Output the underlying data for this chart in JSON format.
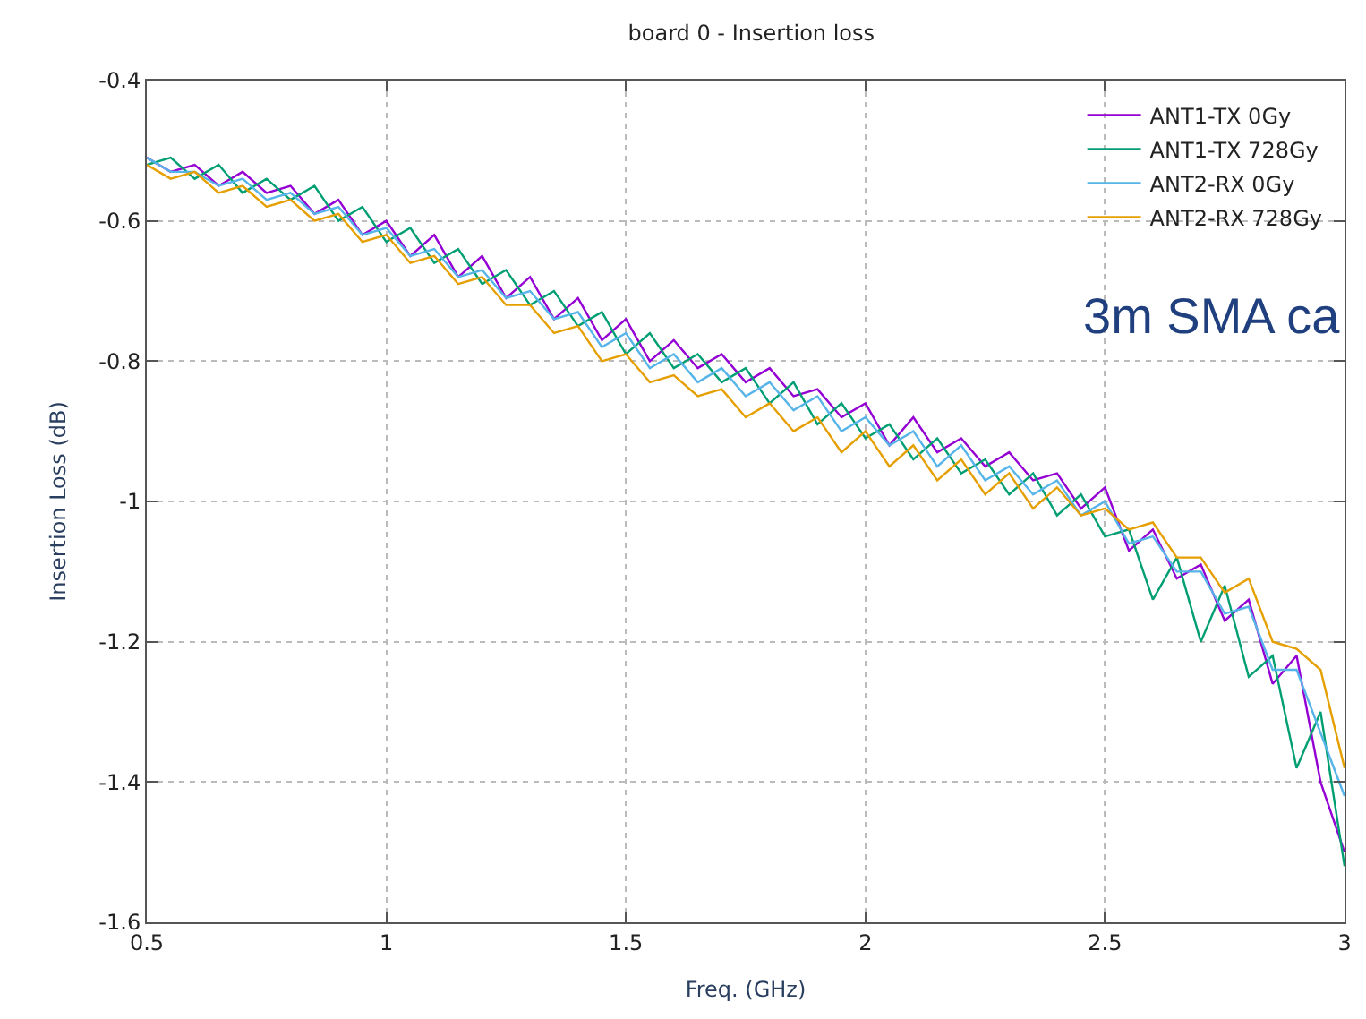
{
  "chart_data": {
    "type": "line",
    "title": "board 0 - Insertion loss",
    "xlabel": "Freq. (GHz)",
    "ylabel": "Insertion Loss (dB)",
    "x": [
      0.5,
      0.55,
      0.6,
      0.65,
      0.7,
      0.75,
      0.8,
      0.85,
      0.9,
      0.95,
      1.0,
      1.05,
      1.1,
      1.15,
      1.2,
      1.25,
      1.3,
      1.35,
      1.4,
      1.45,
      1.5,
      1.55,
      1.6,
      1.65,
      1.7,
      1.75,
      1.8,
      1.85,
      1.9,
      1.95,
      2.0,
      2.05,
      2.1,
      2.15,
      2.2,
      2.25,
      2.3,
      2.35,
      2.4,
      2.45,
      2.5,
      2.55,
      2.6,
      2.65,
      2.7,
      2.75,
      2.8,
      2.85,
      2.9,
      2.95,
      3.0
    ],
    "series": [
      {
        "name": "ANT1-TX 0Gy",
        "color": "#9400d3",
        "values": [
          -0.51,
          -0.53,
          -0.52,
          -0.55,
          -0.53,
          -0.56,
          -0.55,
          -0.59,
          -0.57,
          -0.62,
          -0.6,
          -0.65,
          -0.62,
          -0.68,
          -0.65,
          -0.71,
          -0.68,
          -0.74,
          -0.71,
          -0.77,
          -0.74,
          -0.8,
          -0.77,
          -0.81,
          -0.79,
          -0.83,
          -0.81,
          -0.85,
          -0.84,
          -0.88,
          -0.86,
          -0.92,
          -0.88,
          -0.93,
          -0.91,
          -0.95,
          -0.93,
          -0.97,
          -0.96,
          -1.01,
          -0.98,
          -1.07,
          -1.04,
          -1.11,
          -1.09,
          -1.17,
          -1.14,
          -1.26,
          -1.22,
          -1.4,
          -1.5
        ]
      },
      {
        "name": "ANT1-TX 728Gy",
        "color": "#009e73",
        "values": [
          -0.52,
          -0.51,
          -0.54,
          -0.52,
          -0.56,
          -0.54,
          -0.57,
          -0.55,
          -0.6,
          -0.58,
          -0.63,
          -0.61,
          -0.66,
          -0.64,
          -0.69,
          -0.67,
          -0.72,
          -0.7,
          -0.75,
          -0.73,
          -0.79,
          -0.76,
          -0.81,
          -0.79,
          -0.83,
          -0.81,
          -0.86,
          -0.83,
          -0.89,
          -0.86,
          -0.91,
          -0.89,
          -0.94,
          -0.91,
          -0.96,
          -0.94,
          -0.99,
          -0.96,
          -1.02,
          -0.99,
          -1.05,
          -1.04,
          -1.14,
          -1.08,
          -1.2,
          -1.12,
          -1.25,
          -1.22,
          -1.38,
          -1.3,
          -1.52
        ]
      },
      {
        "name": "ANT2-RX 0Gy",
        "color": "#56b4e9",
        "values": [
          -0.51,
          -0.53,
          -0.53,
          -0.55,
          -0.54,
          -0.57,
          -0.56,
          -0.59,
          -0.58,
          -0.62,
          -0.61,
          -0.65,
          -0.64,
          -0.68,
          -0.67,
          -0.71,
          -0.7,
          -0.74,
          -0.73,
          -0.78,
          -0.76,
          -0.81,
          -0.79,
          -0.83,
          -0.81,
          -0.85,
          -0.83,
          -0.87,
          -0.85,
          -0.9,
          -0.88,
          -0.92,
          -0.9,
          -0.95,
          -0.92,
          -0.97,
          -0.95,
          -0.99,
          -0.97,
          -1.02,
          -1.0,
          -1.06,
          -1.05,
          -1.1,
          -1.1,
          -1.16,
          -1.15,
          -1.24,
          -1.24,
          -1.33,
          -1.42
        ]
      },
      {
        "name": "ANT2-RX 728Gy",
        "color": "#e69f00",
        "values": [
          -0.52,
          -0.54,
          -0.53,
          -0.56,
          -0.55,
          -0.58,
          -0.57,
          -0.6,
          -0.59,
          -0.63,
          -0.62,
          -0.66,
          -0.65,
          -0.69,
          -0.68,
          -0.72,
          -0.72,
          -0.76,
          -0.75,
          -0.8,
          -0.79,
          -0.83,
          -0.82,
          -0.85,
          -0.84,
          -0.88,
          -0.86,
          -0.9,
          -0.88,
          -0.93,
          -0.9,
          -0.95,
          -0.92,
          -0.97,
          -0.94,
          -0.99,
          -0.96,
          -1.01,
          -0.98,
          -1.02,
          -1.01,
          -1.04,
          -1.03,
          -1.08,
          -1.08,
          -1.13,
          -1.11,
          -1.2,
          -1.21,
          -1.24,
          -1.38
        ]
      }
    ],
    "xlim": [
      0.5,
      3
    ],
    "xticks": [
      0.5,
      1,
      1.5,
      2,
      2.5,
      3
    ],
    "ylim": [
      -1.6,
      -0.4
    ],
    "yticks": [
      -1.6,
      -1.4,
      -1.2,
      -1,
      -0.8,
      -0.6,
      -0.4
    ],
    "grid": true,
    "legend": "top right",
    "line_style": "solid",
    "annotations": [
      "3m SMA ca"
    ]
  }
}
